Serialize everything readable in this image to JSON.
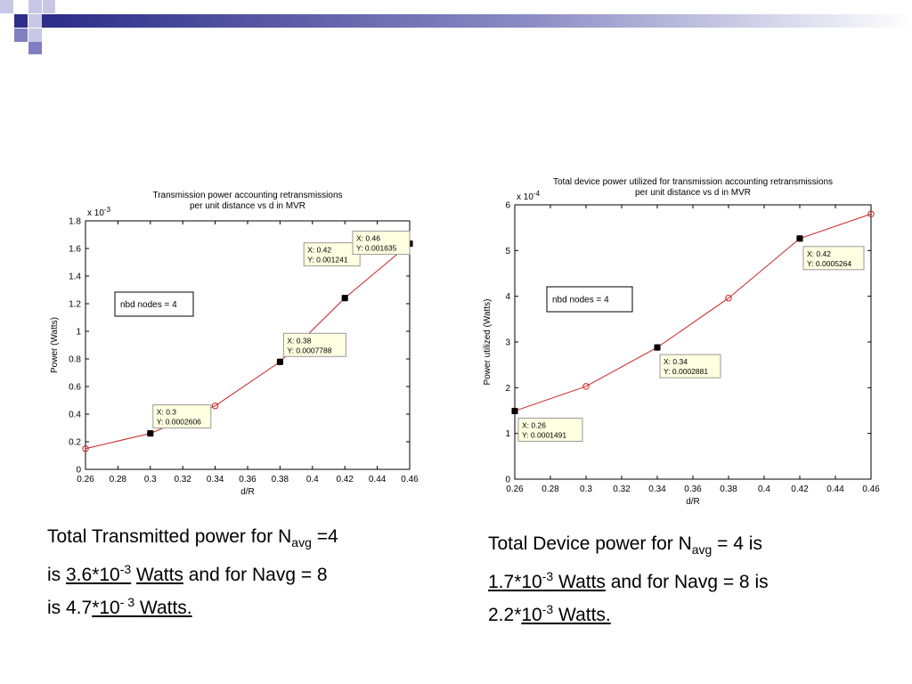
{
  "header": {
    "colors": {
      "dark": "#2e2e8a",
      "mid": "#8080c0",
      "light": "#c8c8e6"
    }
  },
  "chart_data": [
    {
      "type": "line",
      "title": [
        "Transmission power accounting retransmissions",
        "per unit distance vs d in MVR"
      ],
      "xlabel": "d/R",
      "ylabel": "Power (Watts)",
      "y_multiplier": "x 10",
      "y_multiplier_exp": "-3",
      "xlim": [
        0.26,
        0.46
      ],
      "ylim": [
        0,
        1.8
      ],
      "xticks": [
        "0.26",
        "0.28",
        "0.3",
        "0.32",
        "0.34",
        "0.36",
        "0.38",
        "0.4",
        "0.42",
        "0.44",
        "0.46"
      ],
      "yticks": [
        "0",
        "0.2",
        "0.4",
        "0.6",
        "0.8",
        "1",
        "1.2",
        "1.4",
        "1.6",
        "1.8"
      ],
      "series": [
        {
          "x": [
            0.26,
            0.3,
            0.34,
            0.38,
            0.42,
            0.46
          ],
          "y": [
            0.15,
            0.2606,
            0.46,
            0.7788,
            1.241,
            1.635
          ],
          "color": "#cc2222"
        }
      ],
      "datatips": [
        {
          "x": 0.3,
          "y": 0.2606,
          "line1": "X: 0.3",
          "line2": "Y: 0.0002606"
        },
        {
          "x": 0.38,
          "y": 0.7788,
          "line1": "X: 0.38",
          "line2": "Y: 0.0007788"
        },
        {
          "x": 0.42,
          "y": 1.241,
          "line1": "X: 0.42",
          "line2": "Y: 0.001241"
        },
        {
          "x": 0.46,
          "y": 1.635,
          "line1": "X: 0.46",
          "line2": "Y: 0.001635"
        }
      ],
      "annotation": "nbd nodes = 4"
    },
    {
      "type": "line",
      "title": [
        "Total device power utilized for transmission accounting retransmissions",
        "per unit distance vs d in MVR"
      ],
      "xlabel": "d/R",
      "ylabel": "Power utilized (Watts)",
      "y_multiplier": "x 10",
      "y_multiplier_exp": "-4",
      "xlim": [
        0.26,
        0.46
      ],
      "ylim": [
        0,
        6
      ],
      "xticks": [
        "0.26",
        "0.28",
        "0.3",
        "0.32",
        "0.34",
        "0.36",
        "0.38",
        "0.4",
        "0.42",
        "0.44",
        "0.46"
      ],
      "yticks": [
        "0",
        "1",
        "2",
        "3",
        "4",
        "5",
        "6"
      ],
      "series": [
        {
          "x": [
            0.26,
            0.3,
            0.34,
            0.38,
            0.42,
            0.46
          ],
          "y": [
            1.491,
            2.03,
            2.881,
            3.96,
            5.264,
            5.8
          ],
          "color": "#cc2222"
        }
      ],
      "datatips": [
        {
          "x": 0.26,
          "y": 1.491,
          "line1": "X: 0.26",
          "line2": "Y: 0.0001491"
        },
        {
          "x": 0.34,
          "y": 2.881,
          "line1": "X: 0.34",
          "line2": "Y: 0.0002881"
        },
        {
          "x": 0.42,
          "y": 5.264,
          "line1": "X: 0.42",
          "line2": "Y: 0.0005264"
        }
      ],
      "annotation": "nbd nodes = 4"
    }
  ],
  "notes": {
    "left": {
      "l1a": "Total Transmitted power for N",
      "l1sub": "avg",
      "l1b": " =4",
      "l2a": "is ",
      "l2u1": "3.6*10",
      "l2sup": "-3",
      "l2sp": " ",
      "l2u2": "Watts",
      "l2b": " and for Navg = 8",
      "l3a": "is 4.7",
      "l3u1": "*10",
      "l3sup": "- 3",
      "l3u2": " Watts."
    },
    "right": {
      "l1a": "Total Device power for N",
      "l1sub": "avg",
      "l1b": " = 4 is",
      "l2u1": "1.7*10",
      "l2sup": "-3",
      "l2u2": " Watts",
      "l2b": " and for Navg = 8 is",
      "l3a": "2.2*",
      "l3u1": "10",
      "l3sup": "-3",
      "l3u2": "  Watts."
    }
  }
}
